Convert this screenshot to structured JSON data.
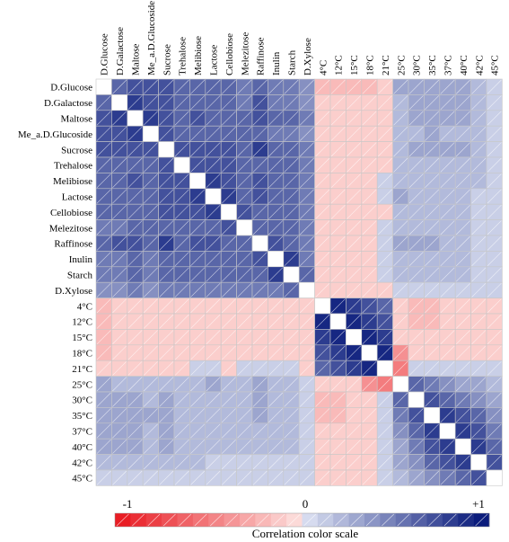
{
  "chart_data": {
    "type": "heatmap",
    "variables": [
      "D.Glucose",
      "D.Galactose",
      "Maltose",
      "Me_a.D.Glucoside",
      "Sucrose",
      "Trehalose",
      "Melibiose",
      "Lactose",
      "Cellobiose",
      "Melezitose",
      "Raffinose",
      "Inulin",
      "Starch",
      "D.Xylose",
      "4°C",
      "12°C",
      "15°C",
      "18°C",
      "21°C",
      "25°C",
      "30°C",
      "35°C",
      "37°C",
      "40°C",
      "42°C",
      "45°C"
    ],
    "value_range": [
      -1,
      1
    ],
    "matrix": [
      [
        1,
        0.6,
        0.7,
        0.7,
        0.7,
        0.6,
        0.6,
        0.6,
        0.6,
        0.5,
        0.6,
        0.5,
        0.5,
        0.4,
        -0.2,
        -0.2,
        -0.2,
        -0.2,
        -0.1,
        0.3,
        0.3,
        0.3,
        0.3,
        0.3,
        0.2,
        0.1
      ],
      [
        0.6,
        1,
        0.8,
        0.7,
        0.7,
        0.6,
        0.6,
        0.6,
        0.6,
        0.5,
        0.7,
        0.5,
        0.5,
        0.4,
        -0.1,
        -0.1,
        -0.1,
        -0.1,
        -0.1,
        0.2,
        0.3,
        0.3,
        0.3,
        0.3,
        0.2,
        0.1
      ],
      [
        0.7,
        0.8,
        1,
        0.8,
        0.7,
        0.6,
        0.7,
        0.6,
        0.6,
        0.6,
        0.7,
        0.6,
        0.6,
        0.5,
        -0.1,
        -0.1,
        -0.1,
        -0.1,
        -0.1,
        0.2,
        0.3,
        0.3,
        0.3,
        0.3,
        0.2,
        0.1
      ],
      [
        0.7,
        0.7,
        0.8,
        1,
        0.7,
        0.6,
        0.6,
        0.6,
        0.6,
        0.6,
        0.6,
        0.5,
        0.5,
        0.4,
        -0.1,
        -0.1,
        -0.1,
        -0.1,
        -0.1,
        0.2,
        0.2,
        0.3,
        0.2,
        0.2,
        0.2,
        0.1
      ],
      [
        0.7,
        0.7,
        0.7,
        0.7,
        1,
        0.7,
        0.7,
        0.7,
        0.7,
        0.6,
        0.8,
        0.6,
        0.6,
        0.5,
        -0.1,
        -0.1,
        -0.1,
        -0.1,
        -0.1,
        0.2,
        0.3,
        0.3,
        0.3,
        0.3,
        0.2,
        0.1
      ],
      [
        0.6,
        0.6,
        0.6,
        0.6,
        0.7,
        1,
        0.7,
        0.7,
        0.7,
        0.6,
        0.6,
        0.6,
        0.6,
        0.5,
        -0.1,
        -0.1,
        -0.1,
        -0.1,
        -0.1,
        0.2,
        0.2,
        0.2,
        0.2,
        0.2,
        0.2,
        0.1
      ],
      [
        0.6,
        0.6,
        0.7,
        0.6,
        0.7,
        0.7,
        1,
        0.8,
        0.7,
        0.6,
        0.7,
        0.6,
        0.6,
        0.5,
        -0.1,
        -0.1,
        -0.1,
        -0.1,
        0.1,
        0.2,
        0.2,
        0.2,
        0.2,
        0.2,
        0.2,
        0.1
      ],
      [
        0.6,
        0.6,
        0.6,
        0.6,
        0.7,
        0.7,
        0.8,
        1,
        0.8,
        0.6,
        0.7,
        0.6,
        0.6,
        0.5,
        -0.1,
        -0.1,
        -0.1,
        -0.1,
        0.1,
        0.3,
        0.2,
        0.2,
        0.2,
        0.2,
        0.1,
        0.1
      ],
      [
        0.6,
        0.6,
        0.6,
        0.6,
        0.7,
        0.7,
        0.7,
        0.8,
        1,
        0.7,
        0.6,
        0.6,
        0.6,
        0.5,
        -0.1,
        -0.1,
        -0.1,
        -0.1,
        -0.1,
        0.2,
        0.2,
        0.2,
        0.2,
        0.2,
        0.1,
        0.1
      ],
      [
        0.5,
        0.5,
        0.6,
        0.6,
        0.6,
        0.6,
        0.6,
        0.6,
        0.7,
        1,
        0.6,
        0.6,
        0.6,
        0.5,
        -0.1,
        -0.1,
        -0.1,
        -0.1,
        0.1,
        0.2,
        0.2,
        0.2,
        0.2,
        0.2,
        0.1,
        0.1
      ],
      [
        0.6,
        0.7,
        0.7,
        0.6,
        0.8,
        0.6,
        0.7,
        0.7,
        0.6,
        0.6,
        1,
        0.7,
        0.6,
        0.5,
        -0.1,
        -0.1,
        -0.1,
        -0.1,
        0.1,
        0.3,
        0.3,
        0.3,
        0.2,
        0.2,
        0.1,
        0.1
      ],
      [
        0.5,
        0.5,
        0.6,
        0.5,
        0.6,
        0.6,
        0.6,
        0.6,
        0.6,
        0.6,
        0.7,
        1,
        0.8,
        0.5,
        -0.1,
        -0.1,
        -0.1,
        -0.1,
        0.1,
        0.2,
        0.2,
        0.2,
        0.2,
        0.2,
        0.1,
        0.1
      ],
      [
        0.5,
        0.5,
        0.6,
        0.5,
        0.6,
        0.6,
        0.6,
        0.6,
        0.6,
        0.6,
        0.6,
        0.8,
        1,
        0.6,
        -0.1,
        -0.1,
        -0.1,
        -0.1,
        0.1,
        0.2,
        0.2,
        0.2,
        0.2,
        0.2,
        0.1,
        0.1
      ],
      [
        0.4,
        0.4,
        0.5,
        0.4,
        0.5,
        0.5,
        0.5,
        0.5,
        0.5,
        0.5,
        0.5,
        0.5,
        0.6,
        1,
        -0.1,
        -0.1,
        -0.1,
        -0.1,
        -0.1,
        0.1,
        0.1,
        0.1,
        0.1,
        0.1,
        0.1,
        0.1
      ],
      [
        -0.2,
        -0.1,
        -0.1,
        -0.1,
        -0.1,
        -0.1,
        -0.1,
        -0.1,
        -0.1,
        -0.1,
        -0.1,
        -0.1,
        -0.1,
        -0.1,
        1,
        0.9,
        0.8,
        0.7,
        0.6,
        -0.1,
        -0.2,
        -0.2,
        -0.1,
        -0.1,
        -0.1,
        -0.1
      ],
      [
        -0.2,
        -0.1,
        -0.1,
        -0.1,
        -0.1,
        -0.1,
        -0.1,
        -0.1,
        -0.1,
        -0.1,
        -0.1,
        -0.1,
        -0.1,
        -0.1,
        0.9,
        1,
        0.9,
        0.8,
        0.7,
        -0.1,
        -0.2,
        -0.2,
        -0.1,
        -0.1,
        -0.1,
        -0.1
      ],
      [
        -0.2,
        -0.1,
        -0.1,
        -0.1,
        -0.1,
        -0.1,
        -0.1,
        -0.1,
        -0.1,
        -0.1,
        -0.1,
        -0.1,
        -0.1,
        -0.1,
        0.8,
        0.9,
        1,
        0.9,
        0.8,
        -0.1,
        -0.1,
        -0.1,
        -0.1,
        -0.1,
        -0.1,
        -0.1
      ],
      [
        -0.2,
        -0.1,
        -0.1,
        -0.1,
        -0.1,
        -0.1,
        -0.1,
        -0.1,
        -0.1,
        -0.1,
        -0.1,
        -0.1,
        -0.1,
        -0.1,
        0.7,
        0.8,
        0.9,
        1,
        0.9,
        -0.4,
        -0.1,
        -0.1,
        -0.1,
        -0.1,
        -0.1,
        -0.1
      ],
      [
        -0.1,
        -0.1,
        -0.1,
        -0.1,
        -0.1,
        -0.1,
        0.1,
        0.1,
        -0.1,
        0.1,
        0.1,
        0.1,
        0.1,
        -0.1,
        0.6,
        0.7,
        0.8,
        0.9,
        1,
        -0.5,
        0.1,
        0.1,
        0.1,
        0.1,
        0.1,
        0.1
      ],
      [
        0.3,
        0.2,
        0.2,
        0.2,
        0.2,
        0.2,
        0.2,
        0.3,
        0.2,
        0.2,
        0.3,
        0.2,
        0.2,
        0.1,
        -0.1,
        -0.1,
        -0.1,
        -0.4,
        -0.5,
        1,
        0.6,
        0.5,
        0.4,
        0.3,
        0.3,
        0.2
      ],
      [
        0.3,
        0.3,
        0.3,
        0.2,
        0.3,
        0.2,
        0.2,
        0.2,
        0.2,
        0.2,
        0.3,
        0.2,
        0.2,
        0.1,
        -0.2,
        -0.2,
        -0.1,
        -0.1,
        0.1,
        0.6,
        1,
        0.7,
        0.6,
        0.5,
        0.4,
        0.3
      ],
      [
        0.3,
        0.3,
        0.3,
        0.3,
        0.3,
        0.2,
        0.2,
        0.2,
        0.2,
        0.2,
        0.3,
        0.2,
        0.2,
        0.1,
        -0.2,
        -0.2,
        -0.1,
        -0.1,
        0.1,
        0.5,
        0.7,
        1,
        0.8,
        0.7,
        0.6,
        0.4
      ],
      [
        0.3,
        0.3,
        0.3,
        0.2,
        0.3,
        0.2,
        0.2,
        0.2,
        0.2,
        0.2,
        0.2,
        0.2,
        0.2,
        0.1,
        -0.1,
        -0.1,
        -0.1,
        -0.1,
        0.1,
        0.4,
        0.6,
        0.8,
        1,
        0.8,
        0.7,
        0.5
      ],
      [
        0.3,
        0.3,
        0.3,
        0.2,
        0.3,
        0.2,
        0.2,
        0.2,
        0.2,
        0.2,
        0.2,
        0.2,
        0.2,
        0.1,
        -0.1,
        -0.1,
        -0.1,
        -0.1,
        0.1,
        0.3,
        0.5,
        0.7,
        0.8,
        1,
        0.8,
        0.6
      ],
      [
        0.2,
        0.2,
        0.2,
        0.2,
        0.2,
        0.2,
        0.2,
        0.1,
        0.1,
        0.1,
        0.1,
        0.1,
        0.1,
        0.1,
        -0.1,
        -0.1,
        -0.1,
        -0.1,
        0.1,
        0.3,
        0.4,
        0.6,
        0.7,
        0.8,
        1,
        0.7
      ],
      [
        0.1,
        0.1,
        0.1,
        0.1,
        0.1,
        0.1,
        0.1,
        0.1,
        0.1,
        0.1,
        0.1,
        0.1,
        0.1,
        0.1,
        -0.1,
        -0.1,
        -0.1,
        -0.1,
        0.1,
        0.2,
        0.3,
        0.4,
        0.5,
        0.6,
        0.7,
        1
      ]
    ],
    "color_scale": {
      "label": "Correlation color scale",
      "tick_labels": [
        "-1",
        "0",
        "+1"
      ],
      "tick_values": [
        -1,
        0,
        1
      ],
      "colors": {
        "neg_strong": "#e8141c",
        "neg_weak": "#fde3e0",
        "pos_weak": "#dfe4f4",
        "pos_strong": "#0b1c7c",
        "diagonal": "#ffffff"
      }
    }
  }
}
